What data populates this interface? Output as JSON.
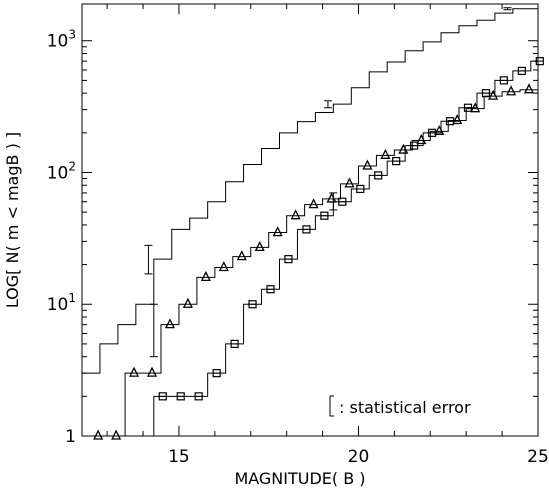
{
  "chart_data": {
    "type": "line",
    "title": "",
    "xlabel": "MAGNITUDE( B )",
    "ylabel": "LOG[ N( m < magB ) ]",
    "xlim": [
      12.3,
      25
    ],
    "ylim": [
      1,
      1900
    ],
    "yscale": "log",
    "grid": false,
    "legend": "none",
    "x_ticks": [
      {
        "value": 15,
        "label": "15"
      },
      {
        "value": 20,
        "label": "20"
      },
      {
        "value": 25,
        "label": "25"
      }
    ],
    "y_ticks": [
      {
        "value": 1,
        "base": "1",
        "exp": ""
      },
      {
        "value": 10,
        "base": "10",
        "exp": "1"
      },
      {
        "value": 100,
        "base": "10",
        "exp": "2"
      },
      {
        "value": 1000,
        "base": "10",
        "exp": "3"
      }
    ],
    "annotation": ": statistical error",
    "series": [
      {
        "marker": "none",
        "x": [
          12.3,
          12.8,
          13.3,
          13.8,
          14.3,
          14.8,
          15.3,
          15.8,
          16.3,
          16.8,
          17.3,
          17.8,
          18.3,
          18.8,
          19.3,
          19.8,
          20.3,
          20.8,
          21.3,
          21.8,
          22.3,
          22.8,
          23.3,
          23.8,
          24.3
        ],
        "values": [
          3,
          5,
          7,
          10,
          22,
          37,
          45,
          60,
          85,
          115,
          152,
          200,
          243,
          285,
          330,
          440,
          580,
          690,
          840,
          980,
          1150,
          1300,
          1430,
          1620,
          1750
        ],
        "errors": [
          [
            14.15,
            22,
            17,
            28
          ],
          [
            19.15,
            330,
            310,
            350
          ],
          [
            24.15,
            1750,
            1720,
            1780
          ]
        ]
      },
      {
        "marker": "triangle",
        "x": [
          12.5,
          13.0,
          13.5,
          14.0,
          14.5,
          15.0,
          15.5,
          16.0,
          16.5,
          17.0,
          17.5,
          18.0,
          18.5,
          19.0,
          19.5,
          20.0,
          20.5,
          21.0,
          21.5,
          22.0,
          22.5,
          23.0,
          23.5,
          24.0,
          24.5
        ],
        "values": [
          1,
          1,
          3,
          3,
          7,
          10,
          16,
          19,
          23,
          27,
          35,
          47,
          57,
          63,
          82,
          112,
          135,
          148,
          175,
          205,
          248,
          305,
          380,
          410,
          425
        ],
        "errors": [
          [
            14.3,
            7,
            4,
            10
          ]
        ]
      },
      {
        "marker": "square",
        "x": [
          14.3,
          14.8,
          15.3,
          15.8,
          16.3,
          16.8,
          17.3,
          17.8,
          18.3,
          18.8,
          19.3,
          19.8,
          20.3,
          20.8,
          21.3,
          21.8,
          22.3,
          22.8,
          23.3,
          23.8,
          24.3,
          24.8
        ],
        "values": [
          2,
          2,
          2,
          3,
          5,
          10,
          13,
          22,
          37,
          47,
          60,
          75,
          95,
          122,
          160,
          200,
          245,
          310,
          400,
          500,
          590,
          700
        ],
        "errors": [
          [
            19.3,
            60,
            52,
            70
          ]
        ]
      }
    ]
  }
}
